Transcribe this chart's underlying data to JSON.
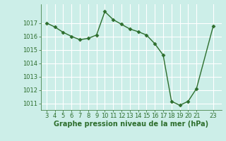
{
  "x": [
    3,
    4,
    5,
    6,
    7,
    8,
    9,
    10,
    11,
    12,
    13,
    14,
    15,
    16,
    17,
    18,
    19,
    20,
    21,
    23
  ],
  "y": [
    1017.0,
    1016.7,
    1016.3,
    1016.0,
    1015.75,
    1015.85,
    1016.1,
    1017.85,
    1017.25,
    1016.9,
    1016.55,
    1016.35,
    1016.1,
    1015.45,
    1014.6,
    1011.15,
    1010.85,
    1011.15,
    1012.1,
    1016.75
  ],
  "line_color": "#2d6e2d",
  "marker": "D",
  "marker_size": 2.5,
  "linewidth": 1.0,
  "bg_color": "#cceee8",
  "grid_color": "#ffffff",
  "xlabel": "Graphe pression niveau de la mer (hPa)",
  "xlabel_color": "#2d6e2d",
  "xlabel_fontsize": 7.0,
  "tick_color": "#2d6e2d",
  "tick_fontsize": 6.0,
  "ylim": [
    1010.5,
    1018.4
  ],
  "yticks": [
    1011,
    1012,
    1013,
    1014,
    1015,
    1016,
    1017
  ],
  "xticks": [
    3,
    4,
    5,
    6,
    7,
    8,
    9,
    10,
    11,
    12,
    13,
    14,
    15,
    16,
    17,
    18,
    19,
    20,
    21,
    23
  ],
  "xlim": [
    2.3,
    24.0
  ]
}
